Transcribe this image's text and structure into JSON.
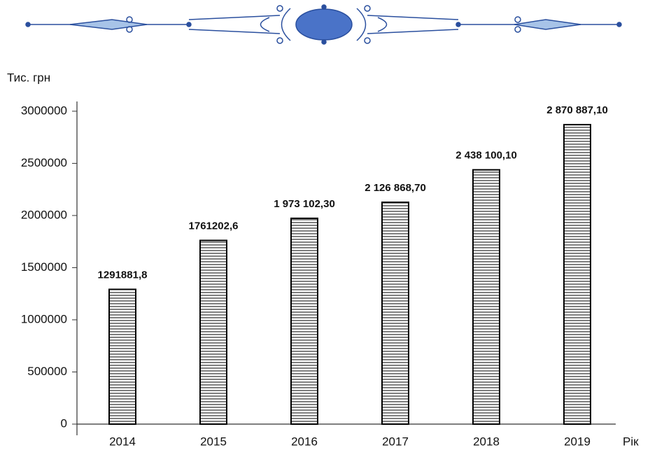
{
  "chart_data": {
    "type": "bar",
    "y_label": "Тис. грн",
    "x_label": "Рік",
    "categories": [
      "2014",
      "2015",
      "2016",
      "2017",
      "2018",
      "2019"
    ],
    "values": [
      1291881.8,
      1761202.6,
      1973102.3,
      2126868.7,
      2438100.1,
      2870887.1
    ],
    "value_labels": [
      "1291881,8",
      "1761202,6",
      "1 973 102,30",
      "2 126 868,70",
      "2 438 100,10",
      "2 870 887,10"
    ],
    "color": "#000000",
    "ylim": [
      0,
      3100000
    ],
    "yticks": [
      0,
      500000,
      1000000,
      1500000,
      2000000,
      2500000,
      3000000
    ],
    "grid": false
  }
}
